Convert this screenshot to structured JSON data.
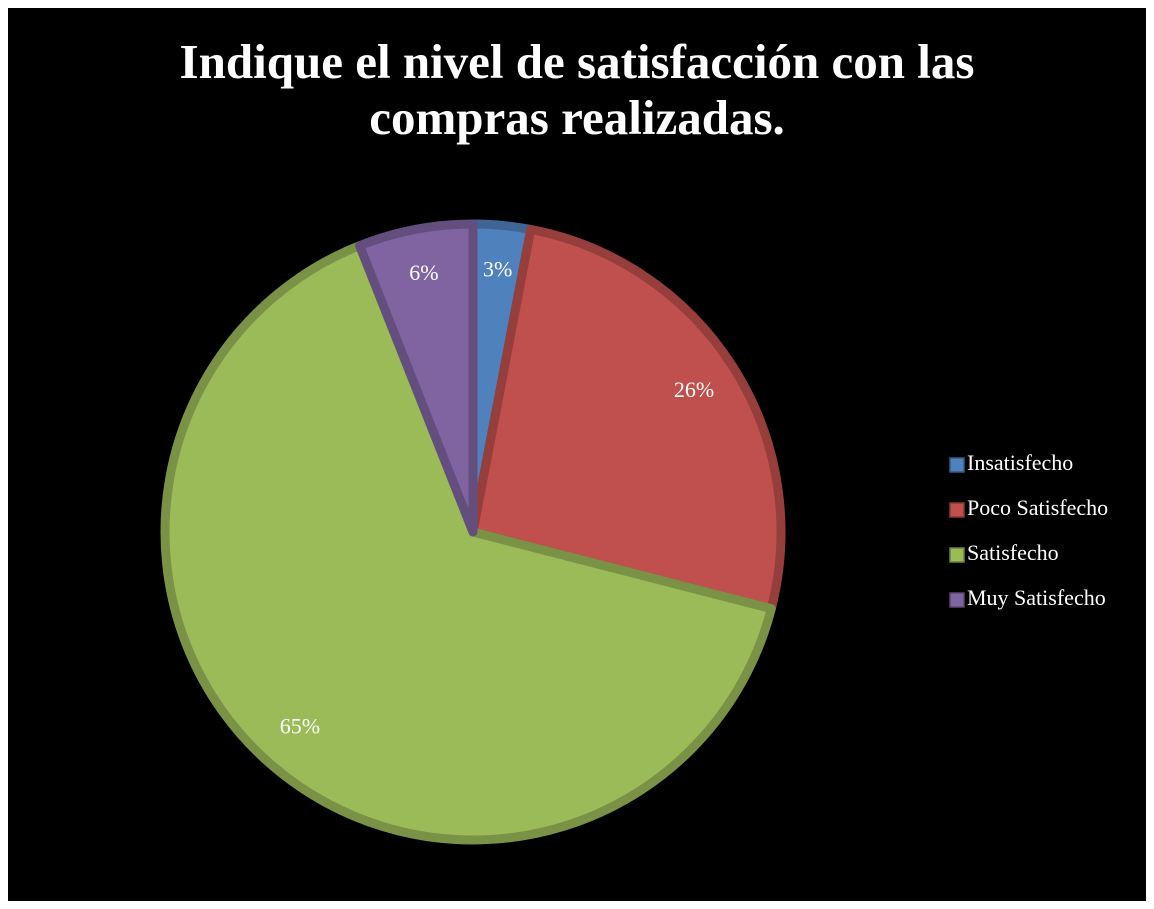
{
  "chart_data": {
    "type": "pie",
    "title": "Indique el nivel de satisfacción con las compras realizadas.",
    "categories": [
      "Insatisfecho",
      "Poco Satisfecho",
      "Satisfecho",
      "Muy Satisfecho"
    ],
    "values": [
      3,
      26,
      65,
      6
    ],
    "value_labels": [
      "3%",
      "26%",
      "65%",
      "6%"
    ],
    "colors": [
      "#4f81bd",
      "#c0504d",
      "#9bbb59",
      "#8064a2"
    ],
    "legend": "right"
  }
}
